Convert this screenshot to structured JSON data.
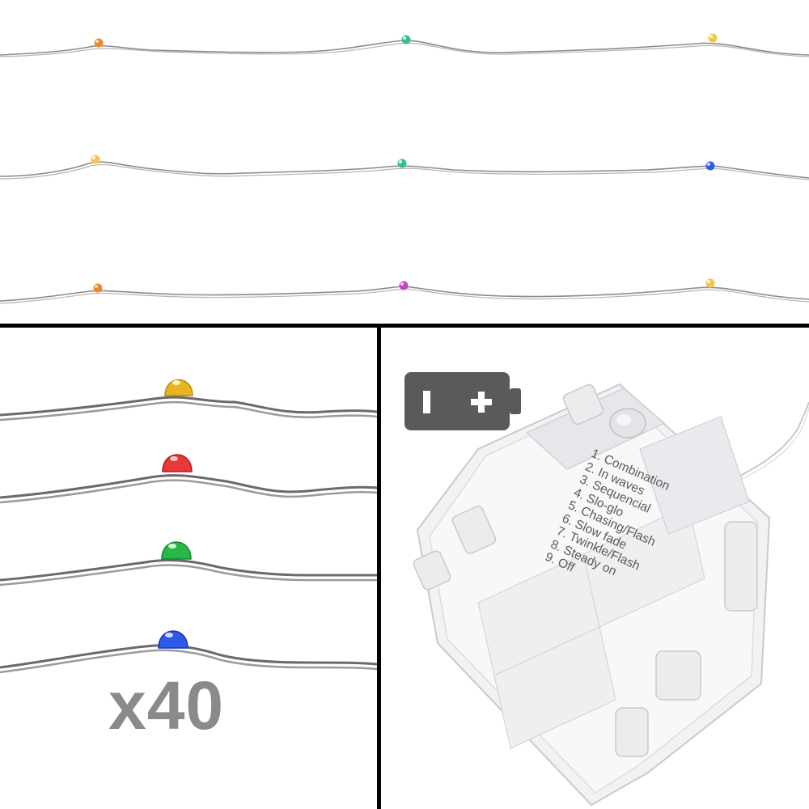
{
  "top_panel": {
    "wires": [
      {
        "name": "wire-row-1",
        "led_colors": [
          "#e98a2c",
          "#39c08a",
          "#f0c84a"
        ]
      },
      {
        "name": "wire-row-2",
        "led_colors": [
          "#f0c84a",
          "#39c08a",
          "#2f5fe0"
        ]
      },
      {
        "name": "wire-row-3",
        "led_colors": [
          "#e98a2c",
          "#c048c8",
          "#f0c84a"
        ]
      }
    ]
  },
  "closeup_panel": {
    "led_colors": [
      "#e8b422",
      "#e8383a",
      "#28b848",
      "#2e58e8"
    ],
    "count_label": "x40"
  },
  "battery_box_panel": {
    "battery_icon": "battery-icon",
    "battery_color": "#5a5a5a",
    "modes": [
      "1. Combination",
      "2. In waves",
      "3. Sequencial",
      "4. Slo-glo",
      "5. Chasing/Flash",
      "6. Slow fade",
      "7. Twinkle/Flash",
      "8. Steady on",
      "9. Off"
    ]
  }
}
